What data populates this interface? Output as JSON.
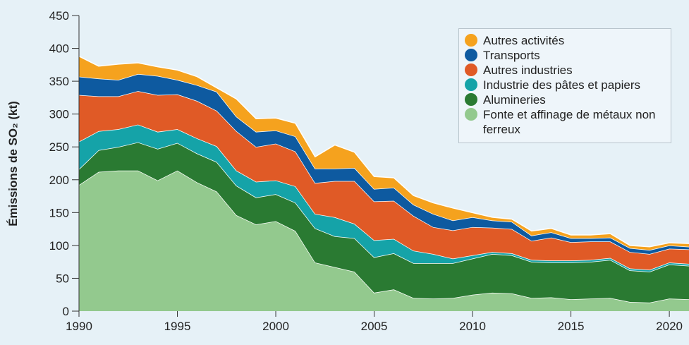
{
  "chart_data": {
    "type": "stacked_area",
    "y_label": "Émissions de SO₂ (kt)",
    "x": [
      1990,
      1991,
      1992,
      1993,
      1994,
      1995,
      1996,
      1997,
      1998,
      1999,
      2000,
      2001,
      2002,
      2003,
      2004,
      2005,
      2006,
      2007,
      2008,
      2009,
      2010,
      2011,
      2012,
      2013,
      2014,
      2015,
      2016,
      2017,
      2018,
      2019,
      2020,
      2021
    ],
    "xlim": [
      1990,
      2021
    ],
    "xticks": [
      1990,
      1995,
      2000,
      2005,
      2010,
      2015,
      2020
    ],
    "ylim": [
      0,
      450
    ],
    "yticks": [
      0,
      50,
      100,
      150,
      200,
      250,
      300,
      350,
      400,
      450
    ],
    "legend": "upper right",
    "series": [
      {
        "name": "Fonte et affinage de métaux non ferreux",
        "color": "#93c98e",
        "values": [
          192,
          212,
          214,
          214,
          199,
          214,
          196,
          182,
          146,
          132,
          137,
          122,
          74,
          67,
          60,
          28,
          33,
          20,
          19,
          20,
          25,
          28,
          27,
          20,
          21,
          18,
          19,
          20,
          14,
          13,
          19,
          18
        ]
      },
      {
        "name": "Alumineries",
        "color": "#2a7a32",
        "values": [
          24,
          33,
          36,
          43,
          48,
          42,
          44,
          45,
          45,
          41,
          41,
          43,
          52,
          47,
          51,
          54,
          55,
          53,
          54,
          53,
          55,
          59,
          58,
          55,
          53,
          56,
          56,
          58,
          48,
          47,
          52,
          51
        ]
      },
      {
        "name": "Industrie des pâtes et papiers",
        "color": "#15a3a8",
        "values": [
          42,
          29,
          27,
          27,
          26,
          21,
          23,
          24,
          23,
          24,
          21,
          25,
          22,
          29,
          22,
          26,
          22,
          19,
          14,
          7,
          5,
          3,
          3,
          3,
          3,
          3,
          3,
          3,
          3,
          3,
          3,
          3
        ]
      },
      {
        "name": "Autres industries",
        "color": "#e05a26",
        "values": [
          71,
          53,
          50,
          51,
          56,
          53,
          57,
          54,
          60,
          53,
          56,
          53,
          47,
          55,
          65,
          59,
          58,
          53,
          41,
          43,
          43,
          37,
          37,
          29,
          35,
          28,
          28,
          25,
          25,
          24,
          21,
          22
        ]
      },
      {
        "name": "Transports",
        "color": "#0e5aa0",
        "values": [
          28,
          27,
          25,
          26,
          29,
          22,
          24,
          29,
          22,
          23,
          20,
          23,
          22,
          19,
          20,
          19,
          20,
          17,
          20,
          15,
          15,
          11,
          11,
          8,
          8,
          6,
          5,
          6,
          6,
          6,
          5,
          4
        ]
      },
      {
        "name": "Autres activités",
        "color": "#f5a21e",
        "values": [
          31,
          19,
          24,
          17,
          14,
          15,
          13,
          6,
          27,
          20,
          19,
          20,
          18,
          36,
          24,
          19,
          15,
          14,
          17,
          19,
          7,
          5,
          4,
          7,
          6,
          5,
          5,
          6,
          4,
          5,
          4,
          5
        ]
      }
    ]
  }
}
